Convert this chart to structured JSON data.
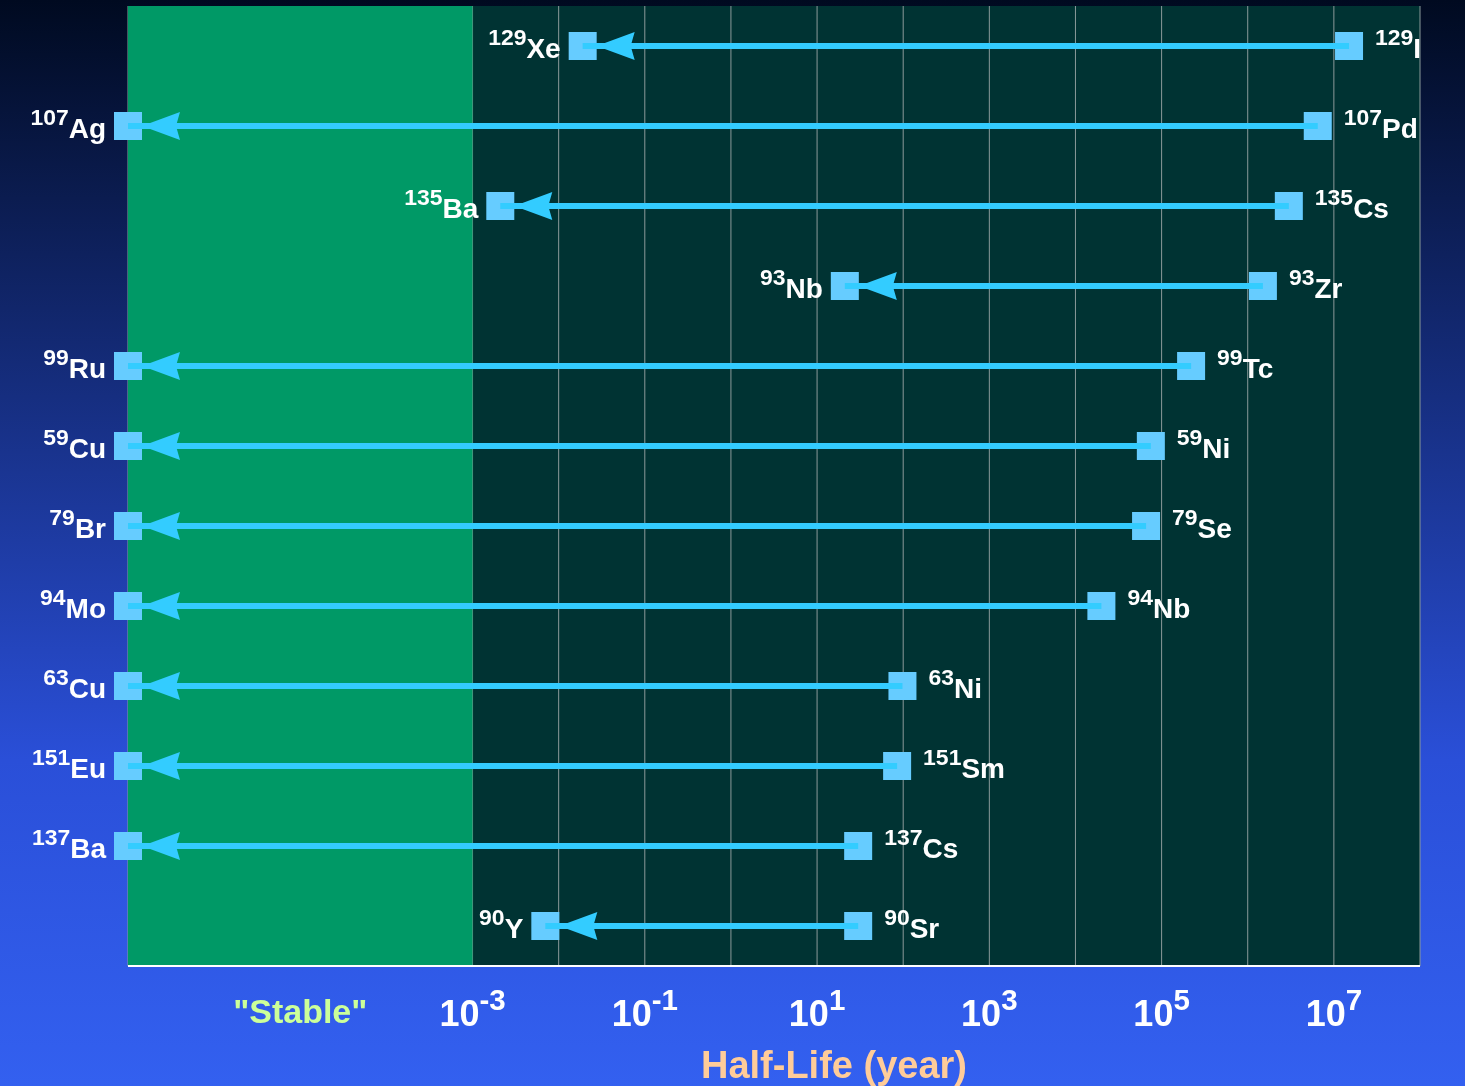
{
  "chart_data": {
    "type": "bar",
    "orientation": "horizontal",
    "log": "x",
    "grid": "x",
    "xlabel": "Half-Life (year)",
    "categories": [
      "$^{129}$I",
      "$^{107}$Pd",
      "$^{135}$Cs",
      "$^{93}$Zr",
      "$^{99}$Tc",
      "$^{59}$Ni",
      "$^{79}$Se",
      "$^{94}$Nb",
      "$^{63}$Ni",
      "$^{151}$Sm",
      "$^{137}$Cs",
      "$^{90}$Sr"
    ],
    "base": [
      0.019,
      1e-07,
      0.0021,
      21,
      1e-07,
      1e-07,
      1e-07,
      1e-07,
      1e-07,
      1e-07,
      1e-07,
      0.007
    ],
    "values": [
      15000000,
      6500000,
      3000000,
      1500000,
      220000,
      75000,
      66000,
      20000,
      98,
      85,
      30,
      30
    ],
    "color": "#33ccff",
    "xlim": [
      1e-07,
      100000000.0
    ],
    "xticks": [
      {
        "value": 0.001,
        "label": "10$^{-3}$"
      },
      {
        "value": 0.01,
        "label": null
      },
      {
        "value": 0.1,
        "label": "10$^{-1}$"
      },
      {
        "value": 1,
        "label": null
      },
      {
        "value": 10,
        "label": "10$^{1}$"
      },
      {
        "value": 100,
        "label": null
      },
      {
        "value": 1000,
        "label": "10$^{3}$"
      },
      {
        "value": 10000,
        "label": null
      },
      {
        "value": 100000,
        "label": "10$^{5}$"
      },
      {
        "value": 1000000,
        "label": null
      },
      {
        "value": 10000000,
        "label": "10$^{7}$"
      }
    ],
    "bands": [
      {
        "axis": "x",
        "from": 1e-07,
        "to": 0.001,
        "label": "\"Stable\"",
        "color": "#009966"
      }
    ],
    "annotations": [
      {
        "text": "$^{129}$Xe",
        "x": 0.019,
        "y": "$^{129}$I"
      },
      {
        "text": "$^{107}$Ag",
        "x": 1e-07,
        "y": "$^{107}$Pd"
      },
      {
        "text": "$^{135}$Ba",
        "x": 0.0021,
        "y": "$^{135}$Cs"
      },
      {
        "text": "$^{93}$Nb",
        "x": 21,
        "y": "$^{93}$Zr"
      },
      {
        "text": "$^{99}$Ru",
        "x": 1e-07,
        "y": "$^{99}$Tc"
      },
      {
        "text": "$^{59}$Cu",
        "x": 1e-07,
        "y": "$^{59}$Ni"
      },
      {
        "text": "$^{79}$Br",
        "x": 1e-07,
        "y": "$^{79}$Se"
      },
      {
        "text": "$^{94}$Mo",
        "x": 1e-07,
        "y": "$^{94}$Nb"
      },
      {
        "text": "$^{63}$Cu",
        "x": 1e-07,
        "y": "$^{63}$Ni"
      },
      {
        "text": "$^{151}$Eu",
        "x": 1e-07,
        "y": "$^{151}$Sm"
      },
      {
        "text": "$^{137}$Ba",
        "x": 1e-07,
        "y": "$^{137}$Cs"
      },
      {
        "text": "$^{90}$Y",
        "x": 0.007,
        "y": "$^{90}$Sr"
      }
    ]
  }
}
